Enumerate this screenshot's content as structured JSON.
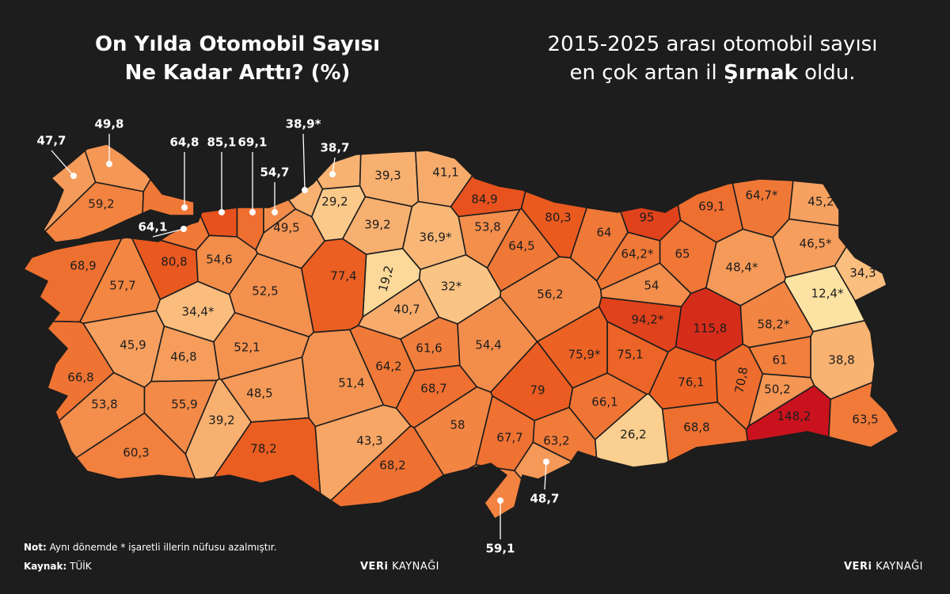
{
  "title": {
    "line1": "On Yılda Otomobil Sayısı",
    "line2": "Ne Kadar Arttı? (%)"
  },
  "headline": {
    "line1": "2015-2025 arası otomobil sayısı",
    "line2_before": "en çok artan il",
    "line2_bold": "Şırnak",
    "line2_after": "oldu."
  },
  "provinces": {
    "values": [
      47.7,
      49.8,
      59.2,
      64.8,
      64.1,
      85.1,
      69.1,
      54.7,
      38.9,
      38.7,
      39.3,
      41.1,
      29.2,
      49.5,
      39.2,
      84.9,
      80.3,
      95,
      69.1,
      64.7,
      45.2,
      46.5,
      34.3,
      12.4,
      48.4,
      65,
      64.2,
      64,
      53.8,
      36.9,
      64.5,
      56.2,
      54,
      94.2,
      115.8,
      58.2,
      38.8,
      61,
      50.2,
      70.8,
      148.2,
      63.5,
      76.1,
      75.1,
      75.9,
      79,
      66.1,
      26.2,
      68.8,
      63.2,
      67.7,
      48.7,
      59.1,
      58,
      54.4,
      68.7,
      61.6,
      64.2,
      40.7,
      19.2,
      32,
      77.4,
      52.5,
      54.6,
      80.8,
      68.9,
      57.7,
      34.4,
      45.9,
      46.8,
      52.1,
      66.8,
      53.8,
      55.9,
      48.5,
      51.4,
      39.2,
      43.3,
      60.3,
      78.2,
      68.2
    ],
    "value_labels": [
      "47,7",
      "49,8",
      "59,2",
      "64,8",
      "64,1",
      "85,1",
      "69,1",
      "54,7",
      "38,9*",
      "38,7",
      "39,3",
      "41,1",
      "29,2",
      "49,5",
      "39,2",
      "84,9",
      "80,3",
      "95",
      "69,1",
      "64,7*",
      "45,2",
      "46,5*",
      "34,3",
      "12,4*",
      "48,4*",
      "65",
      "64,2*",
      "64",
      "53,8",
      "36,9*",
      "64,5",
      "56,2",
      "54",
      "94,2*",
      "115,8",
      "58,2*",
      "38,8",
      "61",
      "50,2",
      "70,8",
      "148,2",
      "63,5",
      "76,1",
      "75,1",
      "75,9*",
      "79",
      "66,1",
      "26,2",
      "68,8",
      "63,2",
      "67,7",
      "48,7",
      "59,1",
      "58",
      "54,4",
      "68,7",
      "61,6",
      "64,2",
      "40,7",
      "19,2",
      "32*",
      "77,4",
      "52,5",
      "54,6",
      "80,8",
      "68,9",
      "57,7",
      "34,4*",
      "45,9",
      "46,8",
      "52,1",
      "66,8",
      "53,8",
      "55,9",
      "48,5",
      "51,4",
      "39,2",
      "43,3",
      "60,3",
      "78,2",
      "68,2"
    ]
  },
  "note": {
    "label": "Not:",
    "text": "Aynı dönemde * işaretli illerin nüfusu azalmıştır."
  },
  "source": {
    "label": "Kaynak:",
    "text": "TÜİK"
  },
  "brand": {
    "bold": "VERi",
    "light": "KAYNAĞI"
  }
}
